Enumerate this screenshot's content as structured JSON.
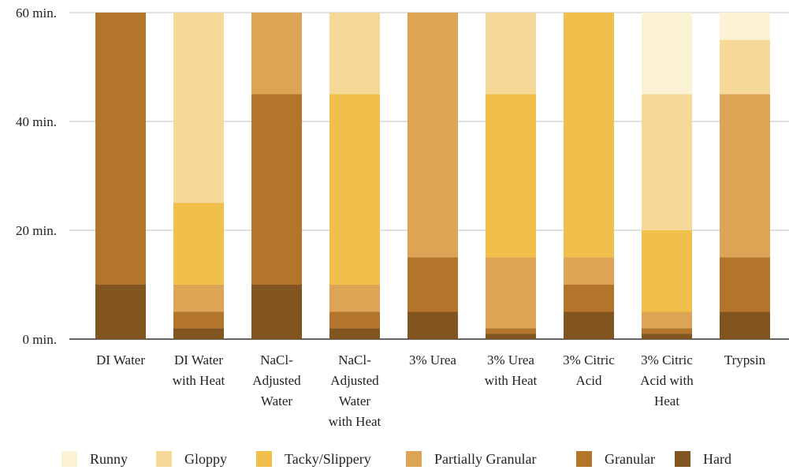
{
  "chart_data": {
    "type": "bar",
    "stacked": true,
    "categories": [
      [
        "DI Water"
      ],
      [
        "DI Water",
        "with Heat"
      ],
      [
        "NaCl-",
        "Adjusted",
        "Water"
      ],
      [
        "NaCl-",
        "Adjusted",
        "Water",
        "with Heat"
      ],
      [
        "3% Urea"
      ],
      [
        "3% Urea",
        "with Heat"
      ],
      [
        "3% Citric",
        "Acid"
      ],
      [
        "3% Citric",
        "Acid with",
        "Heat"
      ],
      [
        "Trypsin"
      ]
    ],
    "series": [
      {
        "name": "Hard",
        "color": "#82541f",
        "values": [
          10,
          2,
          10,
          2,
          5,
          1,
          5,
          1,
          5
        ]
      },
      {
        "name": "Granular",
        "color": "#b3752c",
        "values": [
          50,
          3,
          35,
          3,
          10,
          1,
          5,
          1,
          10
        ]
      },
      {
        "name": "Partially Granular",
        "color": "#dea456",
        "values": [
          0,
          5,
          15,
          5,
          45,
          13,
          5,
          3,
          30
        ]
      },
      {
        "name": "Tacky/Slippery",
        "color": "#f0c04b",
        "values": [
          0,
          15,
          0,
          35,
          0,
          30,
          45,
          15,
          0
        ]
      },
      {
        "name": "Gloppy",
        "color": "#f6d998",
        "values": [
          0,
          35,
          0,
          15,
          0,
          15,
          0,
          25,
          10
        ]
      },
      {
        "name": "Runny",
        "color": "#fbf3d3",
        "values": [
          0,
          0,
          0,
          0,
          0,
          0,
          0,
          15,
          5
        ]
      }
    ],
    "legend_order": [
      "Runny",
      "Gloppy",
      "Tacky/Slippery",
      "Partially Granular",
      "Granular",
      "Hard"
    ],
    "yticks": [
      0,
      20,
      40,
      60
    ],
    "ytick_labels": [
      "0 min.",
      "20 min.",
      "40 min.",
      "60 min."
    ],
    "ylim": [
      0,
      60
    ],
    "grid": true,
    "legend_position": "bottom"
  }
}
